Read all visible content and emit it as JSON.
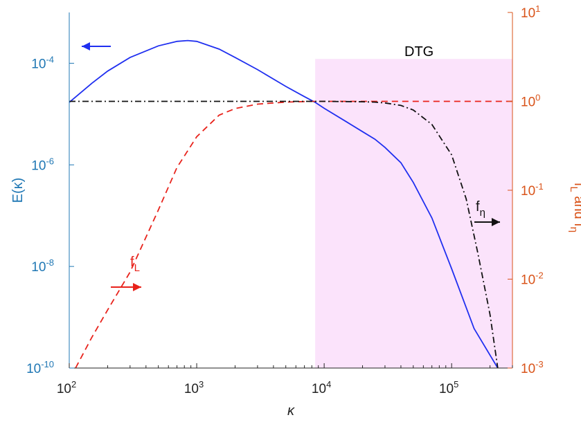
{
  "chart_data": {
    "type": "line",
    "x_scale": "log",
    "xlim": [
      100,
      300000
    ],
    "xlabel": "κ",
    "left_axis": {
      "label": "E(κ)",
      "scale": "log",
      "ylim": [
        1e-10,
        0.001
      ],
      "color": "#1f77b4",
      "tick_labels": [
        "10^-10",
        "10^-8",
        "10^-6",
        "10^-4"
      ],
      "tick_values": [
        1e-10,
        1e-08,
        1e-06,
        0.0001
      ]
    },
    "right_axis": {
      "label": "f_L and f_η",
      "scale": "log",
      "ylim": [
        0.001,
        10
      ],
      "color": "#d95319",
      "tick_labels": [
        "10^-3",
        "10^-2",
        "10^-1",
        "10^0",
        "10^1"
      ],
      "tick_values": [
        0.001,
        0.01,
        0.1,
        1,
        10
      ]
    },
    "x_tick_labels": [
      "10^2",
      "10^3",
      "10^4",
      "10^5"
    ],
    "x_tick_values": [
      100,
      1000,
      10000,
      100000
    ],
    "shaded_region": {
      "label": "DTG",
      "x_from": 8500,
      "x_to": 300000,
      "y_top_right": 3,
      "color": "#fbe3fb"
    },
    "series": [
      {
        "key": "E",
        "axis": "left",
        "color": "#1f2ff0",
        "style": "solid",
        "x": [
          100,
          150,
          200,
          300,
          500,
          700,
          850,
          1000,
          1500,
          2000,
          3000,
          5000,
          7000,
          8500,
          10000,
          15000,
          20000,
          25000,
          30000,
          40000,
          50000,
          70000,
          100000,
          150000,
          200000,
          230000
        ],
        "y": [
          1.7e-05,
          4e-05,
          7e-05,
          0.00013,
          0.00022,
          0.00027,
          0.00028,
          0.00027,
          0.00019,
          0.00013,
          7.5e-05,
          3.5e-05,
          2.2e-05,
          1.7e-05,
          1.3e-05,
          7e-06,
          4.5e-06,
          3.2e-06,
          2.2e-06,
          1.1e-06,
          4.5e-07,
          9e-08,
          9e-09,
          6e-10,
          1.8e-10,
          1e-10
        ]
      },
      {
        "key": "f_L",
        "axis": "right",
        "color": "#e8221b",
        "style": "dashed",
        "label_text": "f",
        "label_sub": "L",
        "x": [
          112,
          150,
          200,
          300,
          500,
          700,
          1000,
          1500,
          2000,
          3000,
          5000,
          8000,
          10000,
          300000
        ],
        "y": [
          0.001,
          0.0022,
          0.0045,
          0.012,
          0.06,
          0.18,
          0.4,
          0.7,
          0.83,
          0.93,
          0.98,
          1.0,
          1.0,
          1.0
        ]
      },
      {
        "key": "f_eta",
        "axis": "right",
        "color": "#111111",
        "style": "dashdot",
        "label_text": "f",
        "label_sub": "η",
        "x": [
          100,
          1000,
          10000,
          20000,
          25000,
          30000,
          40000,
          50000,
          70000,
          100000,
          130000,
          160000,
          200000,
          230000
        ],
        "y": [
          1.0,
          1.0,
          1.0,
          0.99,
          0.98,
          0.96,
          0.9,
          0.8,
          0.55,
          0.25,
          0.08,
          0.02,
          0.004,
          0.001
        ]
      }
    ],
    "annotations": [
      {
        "key": "E_arrow",
        "text": "",
        "direction": "left",
        "color": "#1f2ff0"
      },
      {
        "key": "fL_arrow",
        "text": "f_L",
        "direction": "right",
        "color": "#e8221b"
      },
      {
        "key": "feta_arrow",
        "text": "f_η",
        "direction": "right",
        "color": "#111111"
      }
    ]
  }
}
